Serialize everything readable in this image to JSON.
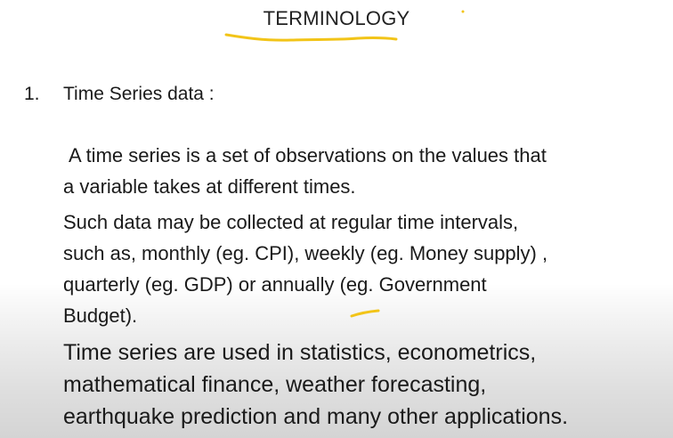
{
  "slide": {
    "title": "TERMINOLOGY",
    "item": {
      "number": "1.",
      "heading": "Time Series data :"
    },
    "paragraphs": [
      {
        "lines": [
          "A time series is a set of observations on the values that",
          "a variable takes at different times."
        ]
      },
      {
        "lines": [
          "Such data may be collected at regular time intervals,",
          "such as, monthly (eg. CPI), weekly (eg. Money supply) ,",
          "quarterly (eg. GDP) or annually (eg. Government",
          "Budget)."
        ]
      },
      {
        "lines": [
          "Time series are used in statistics, econometrics,",
          "mathematical finance, weather forecasting,",
          "earthquake prediction and many other applications."
        ]
      }
    ]
  },
  "colors": {
    "ink_annotation": "#f2c418",
    "text": "#1a1a1a",
    "background": "#ffffff"
  }
}
